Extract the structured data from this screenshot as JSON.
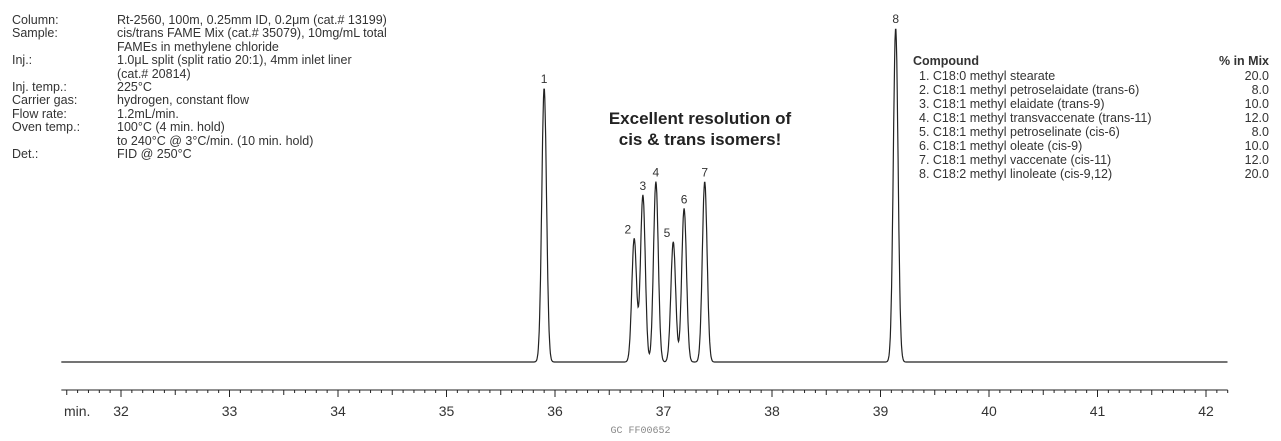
{
  "conditions": [
    {
      "label": "Column:",
      "value": "Rt-2560, 100m, 0.25mm ID, 0.2μm (cat.# 13199)"
    },
    {
      "label": "Sample:",
      "value": "cis/trans FAME Mix (cat.# 35079), 10mg/mL total"
    },
    {
      "label": "",
      "value": "FAMEs in methylene chloride"
    },
    {
      "label": "Inj.:",
      "value": "1.0μL split (split ratio 20:1), 4mm inlet liner"
    },
    {
      "label": "",
      "value": "(cat.# 20814)"
    },
    {
      "label": "Inj. temp.:",
      "value": "225°C"
    },
    {
      "label": "Carrier gas:",
      "value": "hydrogen, constant flow"
    },
    {
      "label": "Flow rate:",
      "value": "1.2mL/min."
    },
    {
      "label": "Oven temp.:",
      "value": "100°C (4 min. hold)"
    },
    {
      "label": "",
      "value": "to 240°C @ 3°C/min. (10 min. hold)"
    },
    {
      "label": "Det.:",
      "value": "FID @ 250°C"
    }
  ],
  "headline": {
    "line1": "Excellent resolution of",
    "line2": "cis & trans isomers!"
  },
  "compound_table": {
    "header_name": "Compound",
    "header_pct": "% in Mix",
    "rows": [
      {
        "name": "1. C18:0 methyl stearate",
        "pct": "20.0"
      },
      {
        "name": "2. C18:1 methyl petroselaidate (trans-6)",
        "pct": "8.0"
      },
      {
        "name": "3. C18:1 methyl elaidate (trans-9)",
        "pct": "10.0"
      },
      {
        "name": "4. C18:1 methyl transvaccenate (trans-11)",
        "pct": "12.0"
      },
      {
        "name": "5. C18:1 methyl petroselinate (cis-6)",
        "pct": "8.0"
      },
      {
        "name": "6. C18:1 methyl oleate (cis-9)",
        "pct": "10.0"
      },
      {
        "name": "7. C18:1 methyl vaccenate (cis-11)",
        "pct": "12.0"
      },
      {
        "name": "8. C18:2 methyl linoleate (cis-9,12)",
        "pct": "20.0"
      }
    ]
  },
  "footer": "GC FF00652",
  "chart_data": {
    "type": "line",
    "xlabel": "min.",
    "xlim": [
      31.5,
      42.2
    ],
    "ylim": [
      0,
      100
    ],
    "x_ticks": [
      32,
      33,
      34,
      35,
      36,
      37,
      38,
      39,
      40,
      41,
      42
    ],
    "grid": false,
    "line_color": "#222222",
    "peaks": [
      {
        "label": "1",
        "x": 35.9,
        "height": 82
      },
      {
        "label": "2",
        "x": 36.73,
        "height": 37
      },
      {
        "label": "3",
        "x": 36.81,
        "height": 50
      },
      {
        "label": "4",
        "x": 36.93,
        "height": 54
      },
      {
        "label": "5",
        "x": 37.09,
        "height": 36
      },
      {
        "label": "6",
        "x": 37.19,
        "height": 46
      },
      {
        "label": "7",
        "x": 37.38,
        "height": 54
      },
      {
        "label": "8",
        "x": 39.14,
        "height": 100
      }
    ]
  }
}
